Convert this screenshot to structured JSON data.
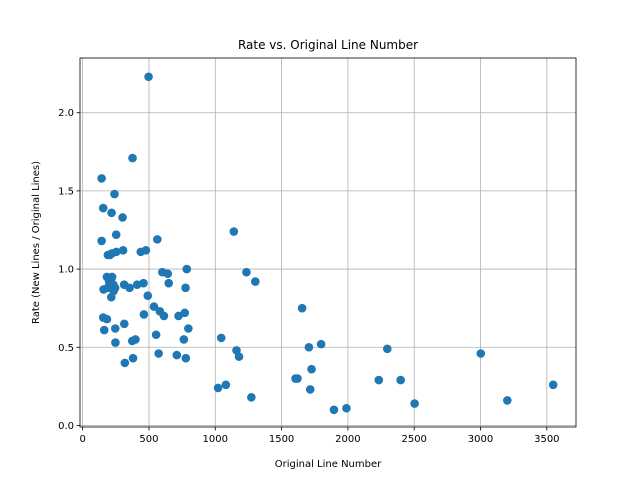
{
  "chart_data": {
    "type": "scatter",
    "title": "Rate vs. Original Line Number",
    "xlabel": "Original Line Number",
    "ylabel": "Rate (New Lines / Original Lines)",
    "xlim": [
      -20,
      3720
    ],
    "ylim": [
      -0.01,
      2.35
    ],
    "xticks": [
      0,
      500,
      1000,
      1500,
      2000,
      2500,
      3000,
      3500
    ],
    "yticks": [
      0.0,
      0.5,
      1.0,
      1.5,
      2.0
    ],
    "xtick_labels": [
      "0",
      "500",
      "1000",
      "1500",
      "2000",
      "2500",
      "3000",
      "3500"
    ],
    "ytick_labels": [
      "0.0",
      "0.5",
      "1.0",
      "1.5",
      "2.0"
    ],
    "grid": true,
    "marker_color": "#1f77b4",
    "series": [
      {
        "points": [
          [
            497,
            2.23
          ],
          [
            376,
            1.71
          ],
          [
            143,
            1.58
          ],
          [
            240,
            1.48
          ],
          [
            155,
            1.39
          ],
          [
            218,
            1.36
          ],
          [
            301,
            1.33
          ],
          [
            253,
            1.22
          ],
          [
            143,
            1.18
          ],
          [
            563,
            1.19
          ],
          [
            1140,
            1.24
          ],
          [
            254,
            1.11
          ],
          [
            305,
            1.12
          ],
          [
            438,
            1.11
          ],
          [
            477,
            1.12
          ],
          [
            190,
            1.09
          ],
          [
            206,
            1.09
          ],
          [
            220,
            1.1
          ],
          [
            183,
            0.95
          ],
          [
            222,
            0.95
          ],
          [
            213,
            0.93
          ],
          [
            200,
            0.92
          ],
          [
            158,
            0.87
          ],
          [
            189,
            0.88
          ],
          [
            231,
            0.9
          ],
          [
            245,
            0.88
          ],
          [
            234,
            0.86
          ],
          [
            216,
            0.82
          ],
          [
            313,
            0.9
          ],
          [
            354,
            0.88
          ],
          [
            411,
            0.9
          ],
          [
            459,
            0.91
          ],
          [
            491,
            0.83
          ],
          [
            601,
            0.98
          ],
          [
            642,
            0.97
          ],
          [
            649,
            0.91
          ],
          [
            785,
            1.0
          ],
          [
            776,
            0.88
          ],
          [
            1235,
            0.98
          ],
          [
            1302,
            0.92
          ],
          [
            538,
            0.76
          ],
          [
            582,
            0.73
          ],
          [
            613,
            0.7
          ],
          [
            462,
            0.71
          ],
          [
            723,
            0.7
          ],
          [
            770,
            0.72
          ],
          [
            797,
            0.62
          ],
          [
            1655,
            0.75
          ],
          [
            155,
            0.69
          ],
          [
            183,
            0.68
          ],
          [
            163,
            0.61
          ],
          [
            246,
            0.62
          ],
          [
            314,
            0.65
          ],
          [
            554,
            0.58
          ],
          [
            398,
            0.55
          ],
          [
            374,
            0.54
          ],
          [
            247,
            0.53
          ],
          [
            763,
            0.55
          ],
          [
            1045,
            0.56
          ],
          [
            380,
            0.43
          ],
          [
            573,
            0.46
          ],
          [
            710,
            0.45
          ],
          [
            778,
            0.43
          ],
          [
            1160,
            0.48
          ],
          [
            1179,
            0.44
          ],
          [
            1706,
            0.5
          ],
          [
            1798,
            0.52
          ],
          [
            2297,
            0.49
          ],
          [
            3002,
            0.46
          ],
          [
            1726,
            0.36
          ],
          [
            1605,
            0.3
          ],
          [
            1620,
            0.3
          ],
          [
            1716,
            0.23
          ],
          [
            2233,
            0.29
          ],
          [
            2398,
            0.29
          ],
          [
            318,
            0.4
          ],
          [
            1021,
            0.24
          ],
          [
            1080,
            0.26
          ],
          [
            1272,
            0.18
          ],
          [
            1895,
            0.1
          ],
          [
            1989,
            0.11
          ],
          [
            2503,
            0.14
          ],
          [
            3202,
            0.16
          ],
          [
            3548,
            0.26
          ]
        ]
      }
    ]
  }
}
